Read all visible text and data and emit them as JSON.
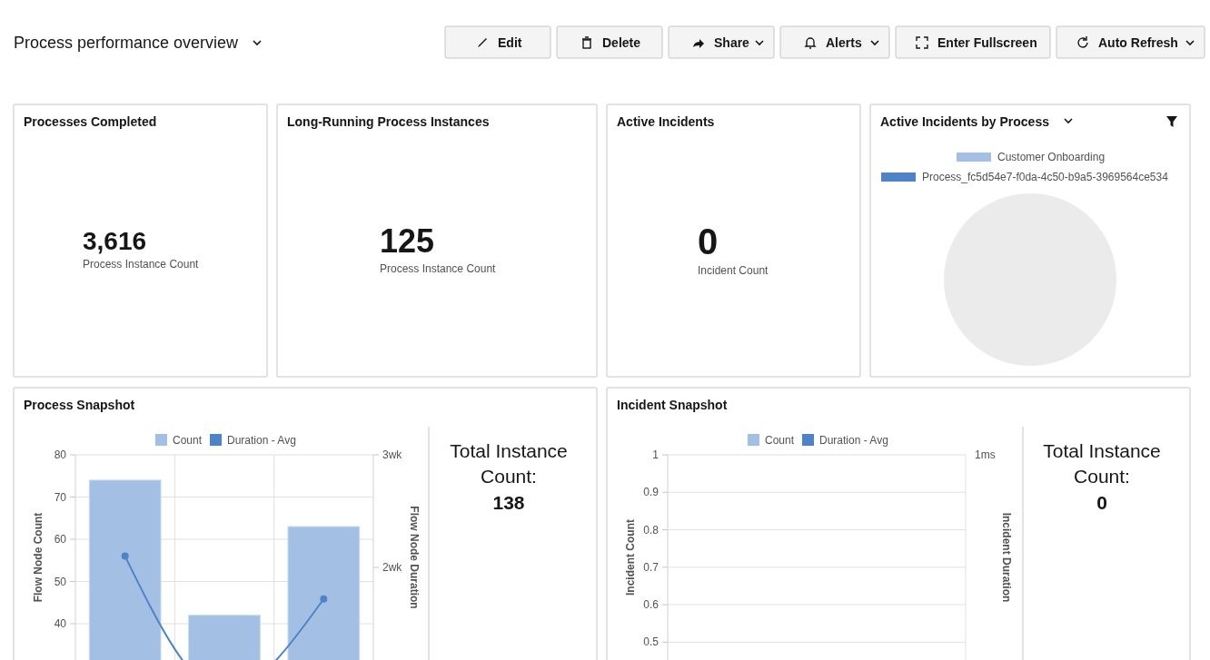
{
  "chart_data": [
    {
      "type": "other",
      "title": "Process performance overview",
      "annotations": [
        "Edit",
        "Delete",
        "Share",
        "Alerts",
        "Enter Fullscreen",
        "Auto Refresh"
      ]
    },
    {
      "type": "other",
      "title": "Processes Completed",
      "annotations": [
        "3,616",
        "Process Instance Count"
      ]
    },
    {
      "type": "other",
      "title": "Long-Running Process Instances",
      "annotations": [
        "125",
        "Process Instance Count"
      ]
    },
    {
      "type": "other",
      "title": "Active Incidents",
      "annotations": [
        "0",
        "Incident Count"
      ]
    },
    {
      "type": "pie",
      "title": "Active Incidents by Process",
      "categories": [
        "Customer Onboarding",
        "Process_fc5d54e7-f0da-4c50-b9a5-3969564ce534"
      ],
      "colors": [
        "#a3c0e4",
        "#4f83c8"
      ]
    },
    {
      "type": "bar",
      "title": "Process Snapshot",
      "categories": [
        null,
        null,
        null
      ],
      "ylabel": "Flow Node Count",
      "y2label": "Flow Node Duration",
      "ylim": [
        20,
        80
      ],
      "yticks": [
        40,
        50,
        60,
        70,
        80
      ],
      "y2lim": [
        0.75,
        3
      ],
      "y2ticks": [
        {
          "value": 2,
          "label": "2wk"
        },
        {
          "value": 3,
          "label": "3wk"
        }
      ],
      "grid": true,
      "legend": "top",
      "marker": "circle",
      "series": [
        {
          "name": "Count",
          "type": "bar",
          "color": "#a3c0e4",
          "values": [
            74,
            42,
            63
          ]
        },
        {
          "name": "Duration - Avg",
          "type": "line",
          "axis": "y2",
          "color": "#4f83c8",
          "values": [
            2.1,
            0.9,
            1.72
          ]
        }
      ],
      "annotations": [
        "Total Instance Count:",
        "138"
      ]
    },
    {
      "type": "bar",
      "title": "Incident Snapshot",
      "ylabel": "Incident Count",
      "y2label": "Incident Duration",
      "ylim": [
        0.45,
        1
      ],
      "yticks": [
        0.5,
        0.6,
        0.7,
        0.8,
        0.9,
        1
      ],
      "grid": true,
      "legend": "top",
      "series": [
        {
          "name": "Count",
          "type": "bar",
          "color": "#a3c0e4"
        },
        {
          "name": "Duration - Avg",
          "type": "line",
          "axis": "y2",
          "color": "#4f83c8"
        }
      ],
      "annotations": [
        "Total Instance Count:",
        "0",
        "1ms"
      ]
    }
  ]
}
